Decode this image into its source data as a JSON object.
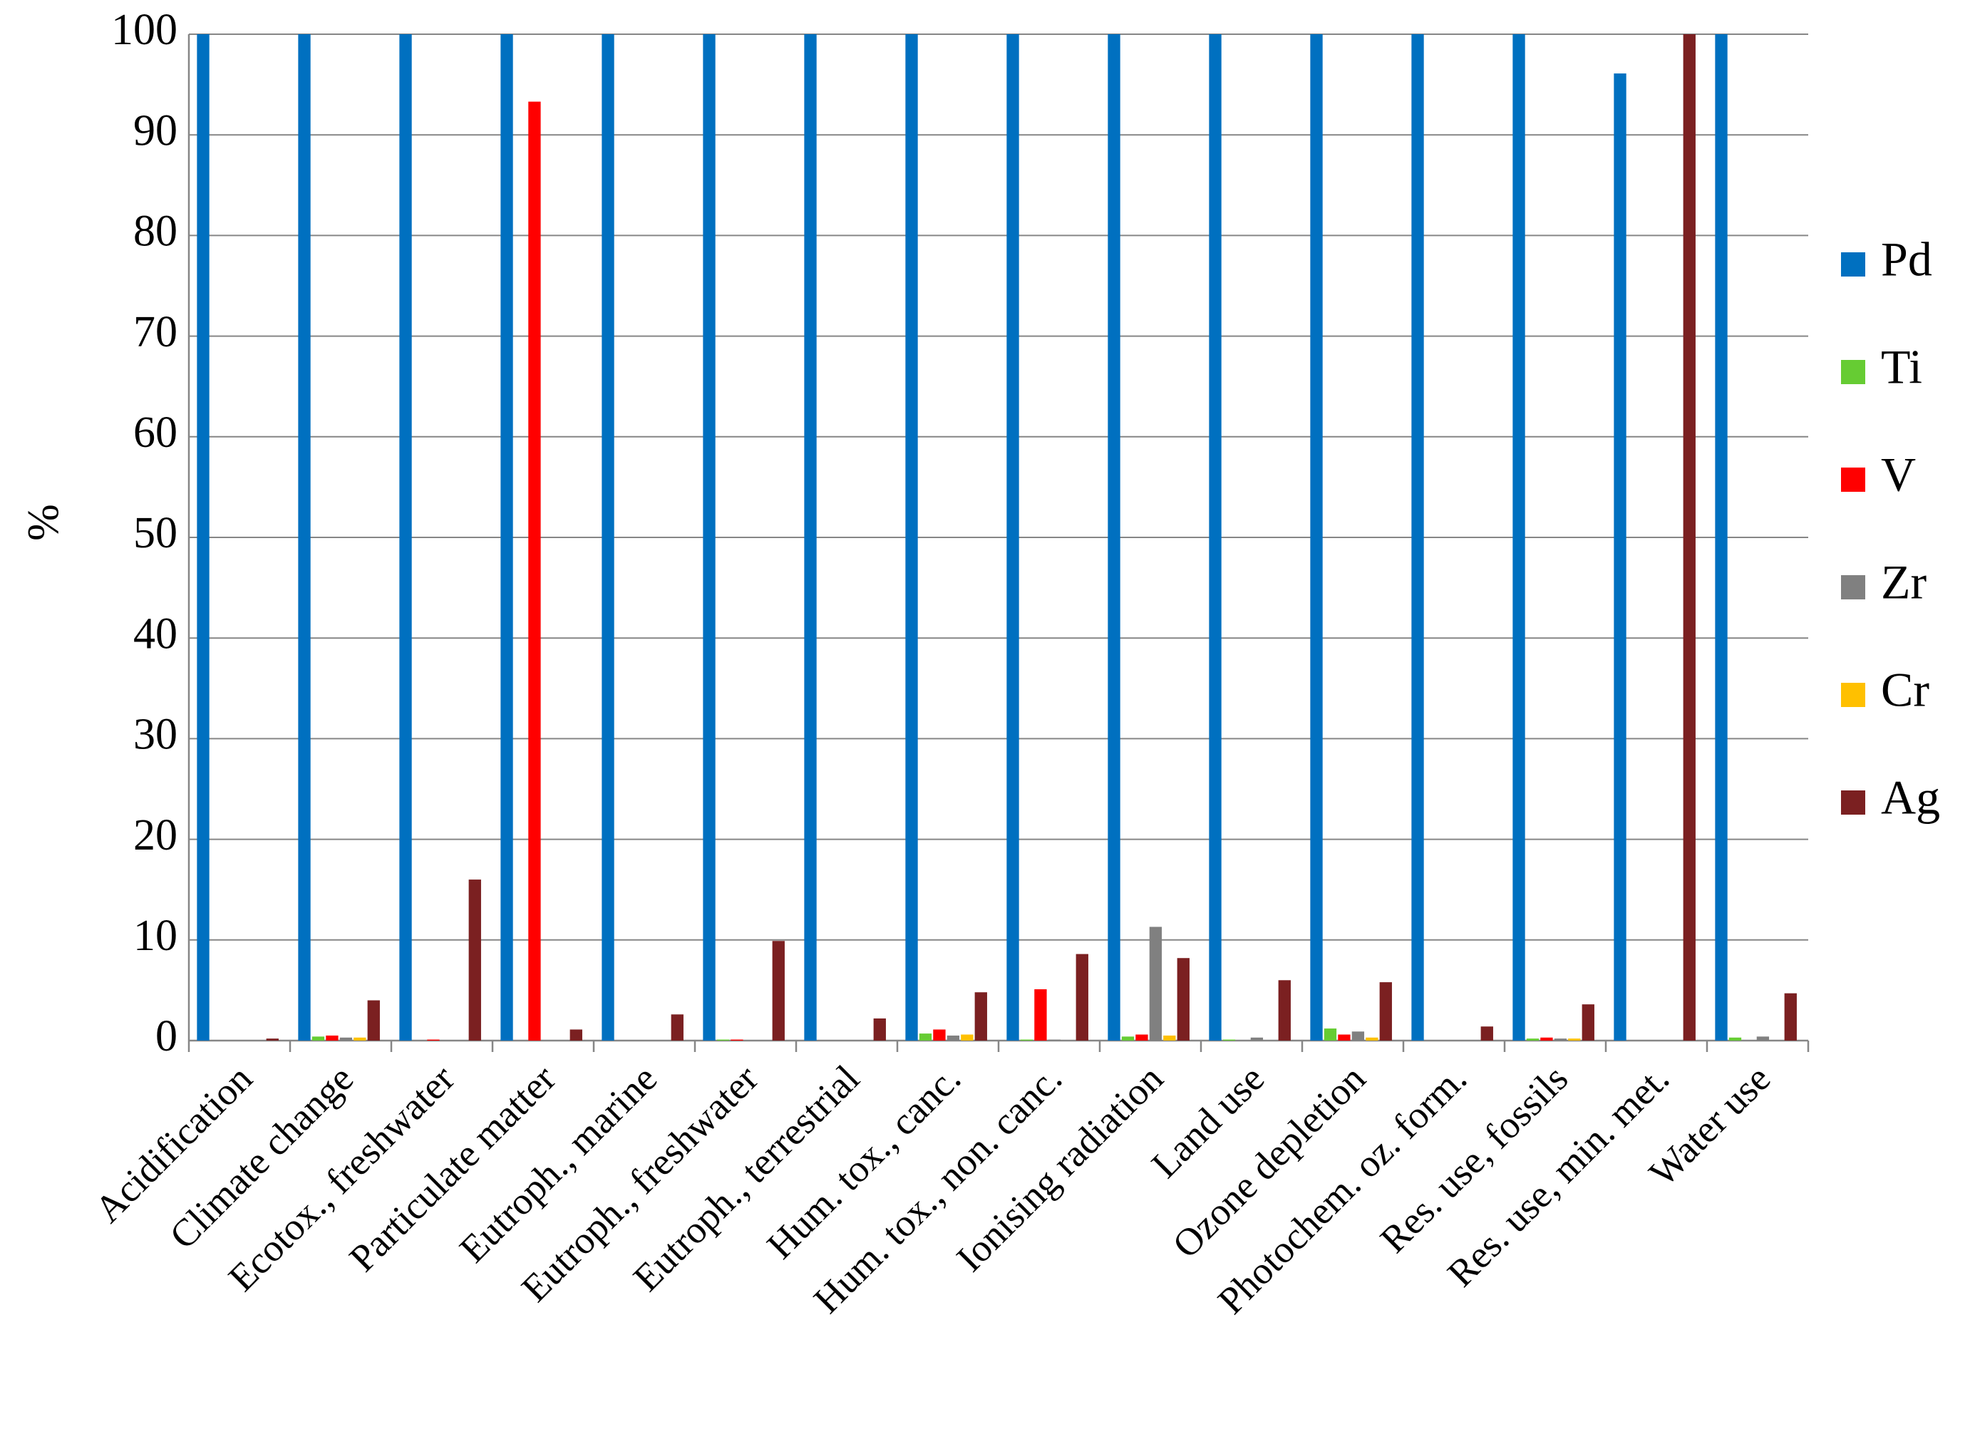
{
  "chart_data": {
    "type": "bar",
    "y_label": "%",
    "categories": [
      "Acidification",
      "Climate change",
      "Ecotox., freshwater",
      "Particulate matter",
      "Eutroph., marine",
      "Eutroph., freshwater",
      "Eutroph., terrestrial",
      "Hum. tox., canc.",
      "Hum. tox., non. canc.",
      "Ionising radiation",
      "Land use",
      "Ozone depletion",
      "Photochem. oz. form.",
      "Res. use, fossils",
      "Res. use, min. met.",
      "Water use"
    ],
    "series": [
      {
        "name": "Pd",
        "color": "#0070c0",
        "values": [
          100,
          100,
          100,
          100,
          100,
          100,
          100,
          100,
          100,
          100,
          100,
          100,
          100,
          100,
          96.1,
          100
        ]
      },
      {
        "name": "Ti",
        "color": "#66cc33",
        "values": [
          0,
          0.4,
          0,
          0,
          0,
          0.1,
          0,
          0.7,
          0.1,
          0.4,
          0.1,
          1.2,
          0,
          0.2,
          0,
          0.3
        ]
      },
      {
        "name": "V",
        "color": "#ff0000",
        "values": [
          0,
          0.5,
          0.1,
          93.3,
          0,
          0.1,
          0,
          1.1,
          5.1,
          0.6,
          0,
          0.6,
          0,
          0.3,
          0,
          0
        ]
      },
      {
        "name": "Zr",
        "color": "#808080",
        "values": [
          0,
          0.3,
          0,
          0,
          0,
          0,
          0,
          0.5,
          0.1,
          11.3,
          0.3,
          0.9,
          0,
          0.2,
          0,
          0.4
        ]
      },
      {
        "name": "Cr",
        "color": "#ffc000",
        "values": [
          0,
          0.3,
          0,
          0,
          0,
          0,
          0,
          0.6,
          0,
          0.5,
          0,
          0.3,
          0,
          0.2,
          0,
          0
        ]
      },
      {
        "name": "Ag",
        "color": "#7b2021",
        "values": [
          0.2,
          4,
          16,
          1.1,
          2.6,
          9.9,
          2.2,
          4.8,
          8.6,
          8.2,
          6,
          5.8,
          1.4,
          3.6,
          100,
          4.7
        ]
      }
    ],
    "ylim": [
      0,
      100
    ],
    "yticks": [
      0,
      10,
      20,
      30,
      40,
      50,
      60,
      70,
      80,
      90,
      100
    ],
    "grid": true,
    "legend": "right"
  }
}
